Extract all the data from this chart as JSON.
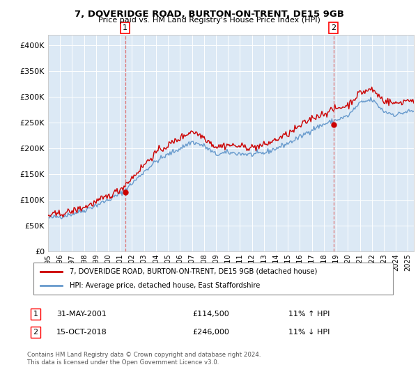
{
  "title": "7, DOVERIDGE ROAD, BURTON-ON-TRENT, DE15 9GB",
  "subtitle": "Price paid vs. HM Land Registry's House Price Index (HPI)",
  "legend_line1": "7, DOVERIDGE ROAD, BURTON-ON-TRENT, DE15 9GB (detached house)",
  "legend_line2": "HPI: Average price, detached house, East Staffordshire",
  "annotation1_label": "1",
  "annotation1_date": "31-MAY-2001",
  "annotation1_price": "£114,500",
  "annotation1_hpi": "11% ↑ HPI",
  "annotation1_year": 2001.42,
  "annotation1_value": 114500,
  "annotation2_label": "2",
  "annotation2_date": "15-OCT-2018",
  "annotation2_price": "£246,000",
  "annotation2_hpi": "11% ↓ HPI",
  "annotation2_year": 2018.79,
  "annotation2_value": 246000,
  "footer": "Contains HM Land Registry data © Crown copyright and database right 2024.\nThis data is licensed under the Open Government Licence v3.0.",
  "ylim": [
    0,
    420000
  ],
  "xlim_start": 1995.0,
  "xlim_end": 2025.5,
  "bg_color": "#dce9f5",
  "hpi_color": "#6699cc",
  "price_color": "#cc0000",
  "dashed_color": "#dd6666",
  "yticks": [
    0,
    50000,
    100000,
    150000,
    200000,
    250000,
    300000,
    350000,
    400000
  ],
  "ytick_labels": [
    "£0",
    "£50K",
    "£100K",
    "£150K",
    "£200K",
    "£250K",
    "£300K",
    "£350K",
    "£400K"
  ],
  "xtick_years": [
    1995,
    1996,
    1997,
    1998,
    1999,
    2000,
    2001,
    2002,
    2003,
    2004,
    2005,
    2006,
    2007,
    2008,
    2009,
    2010,
    2011,
    2012,
    2013,
    2014,
    2015,
    2016,
    2017,
    2018,
    2019,
    2020,
    2021,
    2022,
    2023,
    2024,
    2025
  ]
}
